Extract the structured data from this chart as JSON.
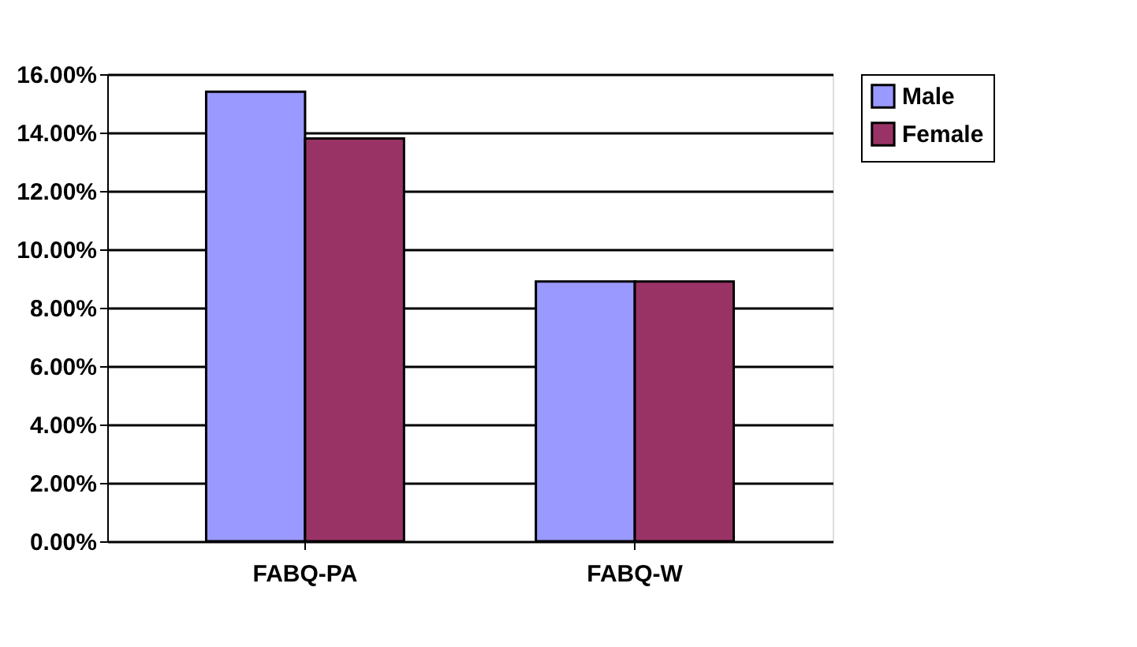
{
  "chart_data": {
    "type": "bar",
    "categories": [
      "FABQ-PA",
      "FABQ-W"
    ],
    "series": [
      {
        "name": "Male",
        "color": "#9999ff",
        "values": [
          15.4,
          8.9
        ]
      },
      {
        "name": "Female",
        "color": "#993366",
        "values": [
          13.8,
          8.9
        ]
      }
    ],
    "ylim": [
      0,
      16
    ],
    "yticks": [
      {
        "value": 0,
        "label": "0.00%"
      },
      {
        "value": 2,
        "label": "2.00%"
      },
      {
        "value": 4,
        "label": "4.00%"
      },
      {
        "value": 6,
        "label": "6.00%"
      },
      {
        "value": 8,
        "label": "8.00%"
      },
      {
        "value": 10,
        "label": "10.00%"
      },
      {
        "value": 12,
        "label": "12.00%"
      },
      {
        "value": 14,
        "label": "14.00%"
      },
      {
        "value": 16,
        "label": "16.00%"
      }
    ],
    "grid": "y",
    "legend": "right"
  }
}
